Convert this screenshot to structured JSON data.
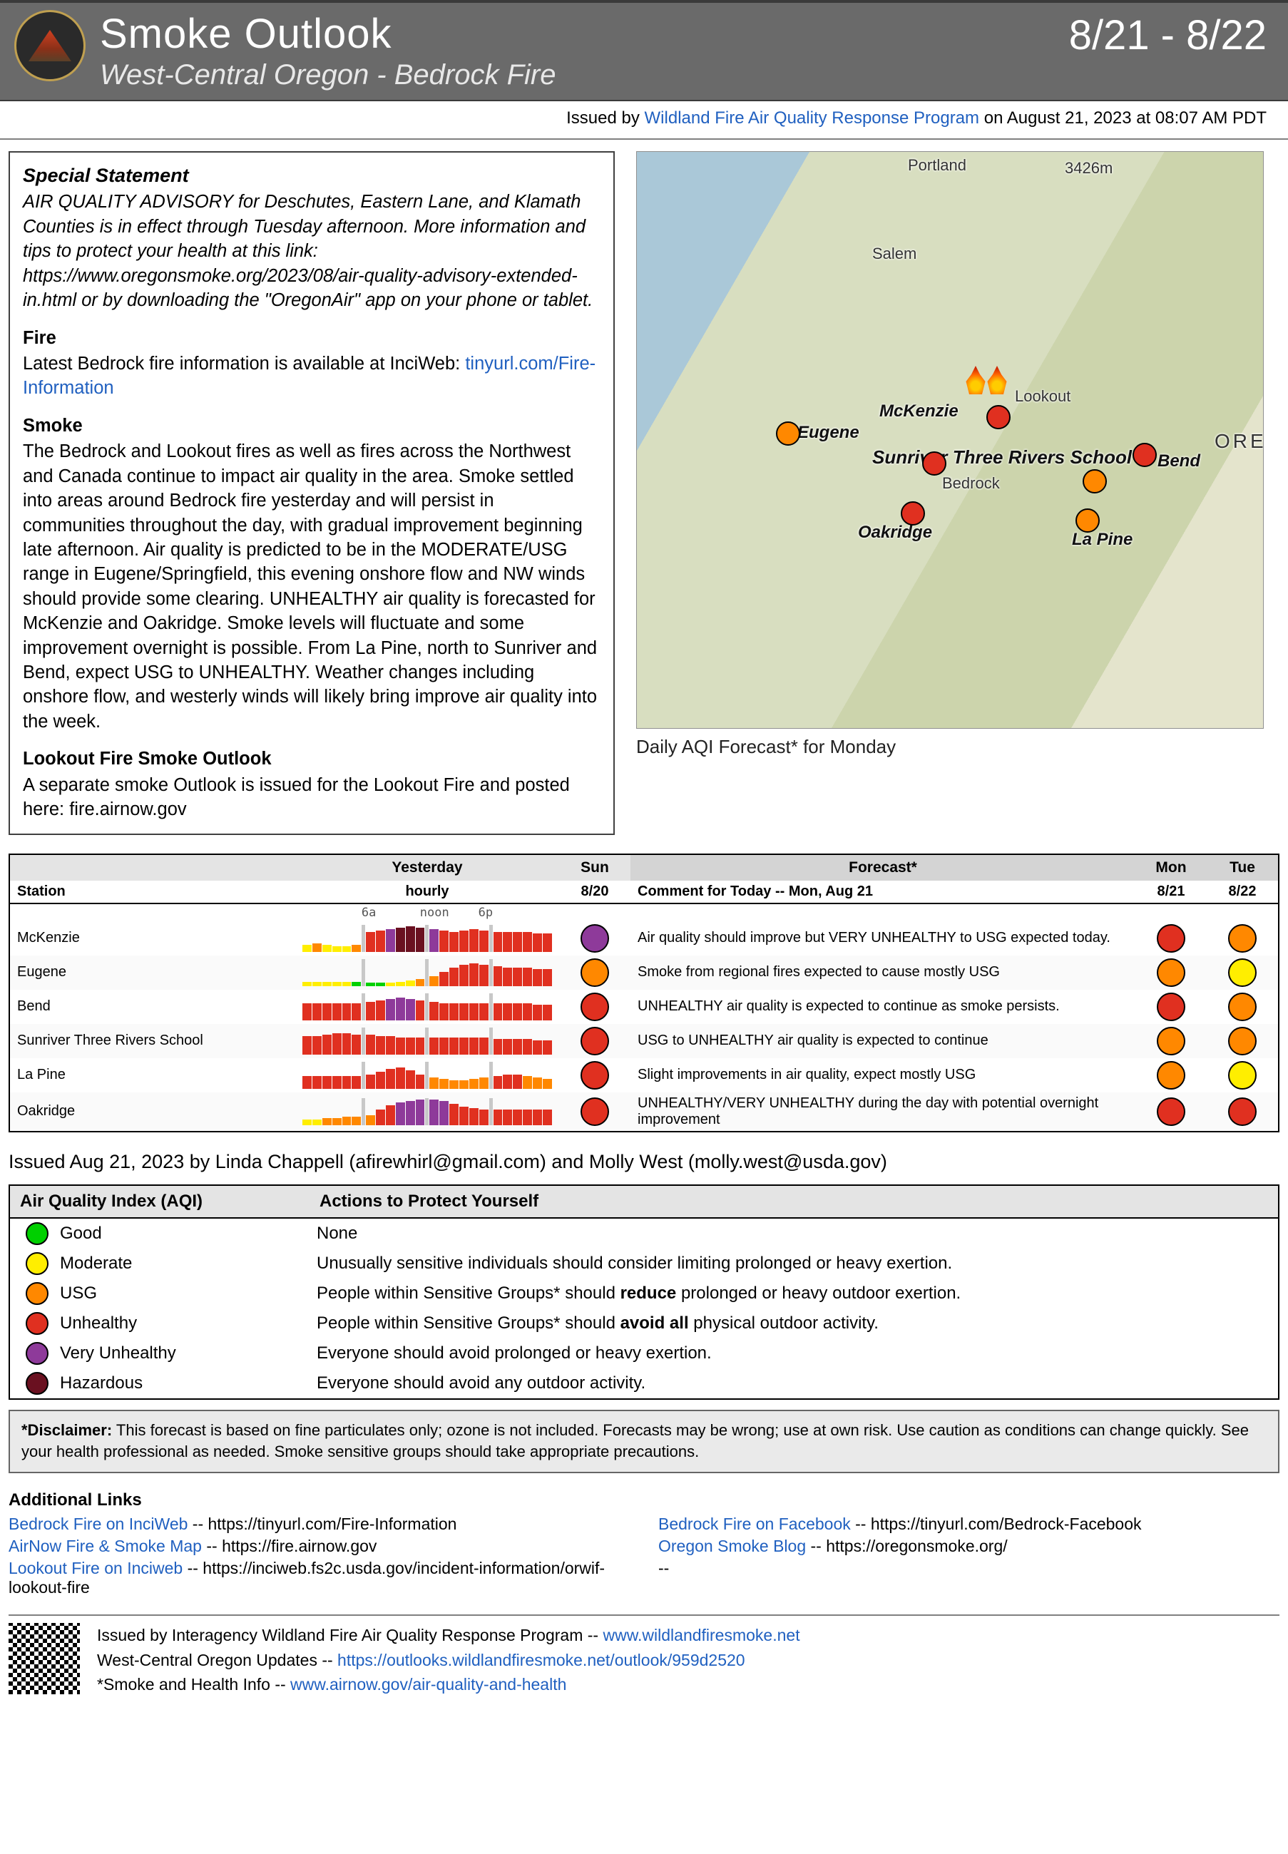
{
  "header": {
    "title": "Smoke Outlook",
    "subtitle": "West-Central Oregon  - Bedrock Fire",
    "date_range": "8/21 - 8/22"
  },
  "issued_line": {
    "prefix": "Issued by ",
    "program": "Wildland Fire Air Quality Response Program",
    "suffix": " on August 21, 2023 at 08:07 AM PDT"
  },
  "special": {
    "heading": "Special Statement",
    "body": "AIR QUALITY ADVISORY for Deschutes, Eastern Lane, and Klamath Counties is in effect through Tuesday afternoon. More information and tips to protect your health at this link: https://www.oregonsmoke.org/2023/08/air-quality-advisory-extended-in.html or by downloading the \"OregonAir\" app on your phone or tablet."
  },
  "fire": {
    "heading": "Fire",
    "body": "Latest Bedrock fire information is available at InciWeb: ",
    "link": "tinyurl.com/Fire-Information"
  },
  "smoke": {
    "heading": "Smoke",
    "body": "The Bedrock and Lookout fires as well as fires across the Northwest and Canada continue to impact air quality in the area. Smoke settled into areas around Bedrock fire yesterday and will persist in communities throughout the day, with gradual improvement beginning late afternoon. Air quality is predicted to be in the MODERATE/USG range in Eugene/Springfield, this evening onshore flow and NW winds should provide some clearing. UNHEALTHY air quality is forecasted for McKenzie and Oakridge. Smoke levels will fluctuate and some improvement overnight is possible. From La Pine, north to Sunriver and Bend, expect USG to UNHEALTHY. Weather changes including onshore flow, and westerly winds will likely bring improve air quality into the week."
  },
  "lookout": {
    "heading": "Lookout Fire Smoke Outlook",
    "body": "A separate smoke Outlook is issued for the Lookout Fire and posted here: fire.airnow.gov"
  },
  "map": {
    "caption": "Daily AQI Forecast* for Monday",
    "labels": {
      "portland": "Portland",
      "salem": "Salem",
      "eugene": "Eugene",
      "mckenzie": "McKenzie",
      "lookout": "Lookout",
      "bedrock": "Bedrock",
      "sunriver": "Sunriver Three Rivers School",
      "bend": "Bend",
      "oakridge": "Oakridge",
      "lapine": "La Pine",
      "oregon": "OREGON",
      "elev": "3426m"
    },
    "dots": {
      "eugene_color": "#ff8800",
      "mckenzie_color": "#e03020",
      "bedrock_color": "#e03020",
      "bend_color": "#e03020",
      "sunriver_color": "#ff8800",
      "oakridge_color": "#e03020",
      "lapine_color": "#ff8800"
    }
  },
  "table": {
    "head": {
      "station": "Station",
      "yesterday": "Yesterday",
      "sun": "Sun",
      "forecast": "Forecast*",
      "mon": "Mon",
      "tue": "Tue",
      "hourly": "hourly",
      "d820": "8/20",
      "comment": "Comment for Today -- Mon, Aug 21",
      "d821": "8/21",
      "d822": "8/22",
      "axis": "6a      noon    6p"
    },
    "rows": [
      {
        "station": "McKenzie",
        "bars": [
          {
            "h": 10,
            "c": "#ffee00"
          },
          {
            "h": 12,
            "c": "#ff8800"
          },
          {
            "h": 10,
            "c": "#ffee00"
          },
          {
            "h": 8,
            "c": "#ffee00"
          },
          {
            "h": 8,
            "c": "#ffee00"
          },
          {
            "h": 10,
            "c": "#ff8800"
          },
          {
            "h": 28,
            "c": "#e03020"
          },
          {
            "h": 30,
            "c": "#e03020"
          },
          {
            "h": 32,
            "c": "#8e3a9a"
          },
          {
            "h": 34,
            "c": "#6a1020"
          },
          {
            "h": 36,
            "c": "#6a1020"
          },
          {
            "h": 34,
            "c": "#6a1020"
          },
          {
            "h": 32,
            "c": "#8e3a9a"
          },
          {
            "h": 30,
            "c": "#e03020"
          },
          {
            "h": 28,
            "c": "#e03020"
          },
          {
            "h": 30,
            "c": "#e03020"
          },
          {
            "h": 32,
            "c": "#e03020"
          },
          {
            "h": 30,
            "c": "#e03020"
          },
          {
            "h": 28,
            "c": "#e03020"
          },
          {
            "h": 28,
            "c": "#e03020"
          },
          {
            "h": 28,
            "c": "#e03020"
          },
          {
            "h": 28,
            "c": "#e03020"
          },
          {
            "h": 26,
            "c": "#e03020"
          },
          {
            "h": 26,
            "c": "#e03020"
          }
        ],
        "sun": "purple",
        "comment": "Air quality should improve but VERY UNHEALTHY to USG expected today.",
        "mon": "red",
        "tue": "orange"
      },
      {
        "station": "Eugene",
        "bars": [
          {
            "h": 6,
            "c": "#ffee00"
          },
          {
            "h": 6,
            "c": "#ffee00"
          },
          {
            "h": 6,
            "c": "#ffee00"
          },
          {
            "h": 6,
            "c": "#ffee00"
          },
          {
            "h": 6,
            "c": "#ffee00"
          },
          {
            "h": 6,
            "c": "#00d000"
          },
          {
            "h": 5,
            "c": "#00d000"
          },
          {
            "h": 5,
            "c": "#00d000"
          },
          {
            "h": 5,
            "c": "#ffee00"
          },
          {
            "h": 6,
            "c": "#ffee00"
          },
          {
            "h": 8,
            "c": "#ffee00"
          },
          {
            "h": 10,
            "c": "#ff8800"
          },
          {
            "h": 14,
            "c": "#ff8800"
          },
          {
            "h": 20,
            "c": "#e03020"
          },
          {
            "h": 26,
            "c": "#e03020"
          },
          {
            "h": 30,
            "c": "#e03020"
          },
          {
            "h": 32,
            "c": "#e03020"
          },
          {
            "h": 30,
            "c": "#e03020"
          },
          {
            "h": 28,
            "c": "#e03020"
          },
          {
            "h": 26,
            "c": "#e03020"
          },
          {
            "h": 26,
            "c": "#e03020"
          },
          {
            "h": 26,
            "c": "#e03020"
          },
          {
            "h": 24,
            "c": "#e03020"
          },
          {
            "h": 24,
            "c": "#e03020"
          }
        ],
        "sun": "orange",
        "comment": "Smoke from regional fires expected to cause mostly USG",
        "mon": "orange",
        "tue": "yellow"
      },
      {
        "station": "Bend",
        "bars": [
          {
            "h": 24,
            "c": "#e03020"
          },
          {
            "h": 24,
            "c": "#e03020"
          },
          {
            "h": 24,
            "c": "#e03020"
          },
          {
            "h": 24,
            "c": "#e03020"
          },
          {
            "h": 24,
            "c": "#e03020"
          },
          {
            "h": 24,
            "c": "#e03020"
          },
          {
            "h": 26,
            "c": "#e03020"
          },
          {
            "h": 28,
            "c": "#e03020"
          },
          {
            "h": 30,
            "c": "#8e3a9a"
          },
          {
            "h": 32,
            "c": "#8e3a9a"
          },
          {
            "h": 30,
            "c": "#8e3a9a"
          },
          {
            "h": 28,
            "c": "#e03020"
          },
          {
            "h": 26,
            "c": "#e03020"
          },
          {
            "h": 24,
            "c": "#e03020"
          },
          {
            "h": 24,
            "c": "#e03020"
          },
          {
            "h": 24,
            "c": "#e03020"
          },
          {
            "h": 24,
            "c": "#e03020"
          },
          {
            "h": 24,
            "c": "#e03020"
          },
          {
            "h": 24,
            "c": "#e03020"
          },
          {
            "h": 24,
            "c": "#e03020"
          },
          {
            "h": 24,
            "c": "#e03020"
          },
          {
            "h": 24,
            "c": "#e03020"
          },
          {
            "h": 22,
            "c": "#e03020"
          },
          {
            "h": 22,
            "c": "#e03020"
          }
        ],
        "sun": "red",
        "comment": "UNHEALTHY air quality is expected to continue as smoke persists.",
        "mon": "red",
        "tue": "orange"
      },
      {
        "station": "Sunriver Three Rivers School",
        "bars": [
          {
            "h": 26,
            "c": "#e03020"
          },
          {
            "h": 26,
            "c": "#e03020"
          },
          {
            "h": 28,
            "c": "#e03020"
          },
          {
            "h": 30,
            "c": "#e03020"
          },
          {
            "h": 30,
            "c": "#e03020"
          },
          {
            "h": 28,
            "c": "#e03020"
          },
          {
            "h": 28,
            "c": "#e03020"
          },
          {
            "h": 26,
            "c": "#e03020"
          },
          {
            "h": 26,
            "c": "#e03020"
          },
          {
            "h": 24,
            "c": "#e03020"
          },
          {
            "h": 24,
            "c": "#e03020"
          },
          {
            "h": 24,
            "c": "#e03020"
          },
          {
            "h": 24,
            "c": "#e03020"
          },
          {
            "h": 24,
            "c": "#e03020"
          },
          {
            "h": 24,
            "c": "#e03020"
          },
          {
            "h": 24,
            "c": "#e03020"
          },
          {
            "h": 24,
            "c": "#e03020"
          },
          {
            "h": 24,
            "c": "#e03020"
          },
          {
            "h": 22,
            "c": "#e03020"
          },
          {
            "h": 22,
            "c": "#e03020"
          },
          {
            "h": 22,
            "c": "#e03020"
          },
          {
            "h": 22,
            "c": "#e03020"
          },
          {
            "h": 20,
            "c": "#e03020"
          },
          {
            "h": 20,
            "c": "#e03020"
          }
        ],
        "sun": "red",
        "comment": "USG to UNHEALTHY air quality is expected to continue",
        "mon": "orange",
        "tue": "orange"
      },
      {
        "station": "La Pine",
        "bars": [
          {
            "h": 18,
            "c": "#e03020"
          },
          {
            "h": 18,
            "c": "#e03020"
          },
          {
            "h": 18,
            "c": "#e03020"
          },
          {
            "h": 18,
            "c": "#e03020"
          },
          {
            "h": 18,
            "c": "#e03020"
          },
          {
            "h": 18,
            "c": "#e03020"
          },
          {
            "h": 20,
            "c": "#e03020"
          },
          {
            "h": 24,
            "c": "#e03020"
          },
          {
            "h": 28,
            "c": "#e03020"
          },
          {
            "h": 30,
            "c": "#e03020"
          },
          {
            "h": 26,
            "c": "#e03020"
          },
          {
            "h": 20,
            "c": "#e03020"
          },
          {
            "h": 16,
            "c": "#ff8800"
          },
          {
            "h": 14,
            "c": "#ff8800"
          },
          {
            "h": 12,
            "c": "#ff8800"
          },
          {
            "h": 12,
            "c": "#ff8800"
          },
          {
            "h": 14,
            "c": "#ff8800"
          },
          {
            "h": 16,
            "c": "#ff8800"
          },
          {
            "h": 18,
            "c": "#e03020"
          },
          {
            "h": 20,
            "c": "#e03020"
          },
          {
            "h": 20,
            "c": "#e03020"
          },
          {
            "h": 18,
            "c": "#ff8800"
          },
          {
            "h": 16,
            "c": "#ff8800"
          },
          {
            "h": 14,
            "c": "#ff8800"
          }
        ],
        "sun": "red",
        "comment": "Slight improvements in air quality, expect mostly USG",
        "mon": "orange",
        "tue": "yellow"
      },
      {
        "station": "Oakridge",
        "bars": [
          {
            "h": 8,
            "c": "#ffee00"
          },
          {
            "h": 8,
            "c": "#ffee00"
          },
          {
            "h": 10,
            "c": "#ff8800"
          },
          {
            "h": 10,
            "c": "#ff8800"
          },
          {
            "h": 12,
            "c": "#ff8800"
          },
          {
            "h": 12,
            "c": "#ff8800"
          },
          {
            "h": 14,
            "c": "#ff8800"
          },
          {
            "h": 22,
            "c": "#e03020"
          },
          {
            "h": 28,
            "c": "#e03020"
          },
          {
            "h": 32,
            "c": "#8e3a9a"
          },
          {
            "h": 34,
            "c": "#8e3a9a"
          },
          {
            "h": 36,
            "c": "#8e3a9a"
          },
          {
            "h": 36,
            "c": "#8e3a9a"
          },
          {
            "h": 34,
            "c": "#8e3a9a"
          },
          {
            "h": 30,
            "c": "#e03020"
          },
          {
            "h": 26,
            "c": "#e03020"
          },
          {
            "h": 24,
            "c": "#e03020"
          },
          {
            "h": 22,
            "c": "#e03020"
          },
          {
            "h": 22,
            "c": "#e03020"
          },
          {
            "h": 22,
            "c": "#e03020"
          },
          {
            "h": 22,
            "c": "#e03020"
          },
          {
            "h": 22,
            "c": "#e03020"
          },
          {
            "h": 22,
            "c": "#e03020"
          },
          {
            "h": 22,
            "c": "#e03020"
          }
        ],
        "sun": "red",
        "comment": "UNHEALTHY/VERY UNHEALTHY during the day with potential overnight improvement",
        "mon": "red",
        "tue": "red"
      }
    ]
  },
  "issued_by": "Issued Aug 21, 2023 by Linda Chappell (afirewhirl@gmail.com) and Molly West (molly.west@usda.gov)",
  "legend": {
    "col1": "Air Quality Index (AQI)",
    "col2": "Actions to Protect Yourself",
    "rows": [
      {
        "color": "green",
        "label": "Good",
        "action": "None"
      },
      {
        "color": "yellow",
        "label": "Moderate",
        "action": "Unusually sensitive individuals should consider limiting prolonged or heavy exertion."
      },
      {
        "color": "orange",
        "label": "USG",
        "action": "People within Sensitive Groups* should reduce prolonged or heavy outdoor exertion.",
        "bold": "reduce"
      },
      {
        "color": "red",
        "label": "Unhealthy",
        "action": "People within Sensitive Groups* should avoid all physical outdoor activity.",
        "bold": "avoid all"
      },
      {
        "color": "purple",
        "label": "Very Unhealthy",
        "action": "Everyone should avoid prolonged or heavy exertion."
      },
      {
        "color": "maroon",
        "label": "Hazardous",
        "action": "Everyone should avoid any outdoor activity."
      }
    ]
  },
  "disclaimer": {
    "label": "*Disclaimer:",
    "body": " This forecast is based on fine particulates only; ozone is not included. Forecasts may be wrong; use at own risk. Use caution as conditions can change quickly. See your health professional as needed. Smoke sensitive groups should take appropriate precautions."
  },
  "links": {
    "heading": "Additional Links",
    "items": [
      {
        "label": "Bedrock Fire on InciWeb",
        "url": "https://tinyurl.com/Fire-Information"
      },
      {
        "label": "Bedrock Fire on Facebook",
        "url": "https://tinyurl.com/Bedrock-Facebook"
      },
      {
        "label": "AirNow Fire & Smoke Map",
        "url": "https://fire.airnow.gov"
      },
      {
        "label": "Oregon Smoke Blog",
        "url": "https://oregonsmoke.org/"
      },
      {
        "label": "Lookout Fire on Inciweb",
        "url": "https://inciweb.fs2c.usda.gov/incident-information/orwif-lookout-fire"
      },
      {
        "label": "",
        "url": "--"
      }
    ]
  },
  "footer": {
    "l1a": "Issued by Interagency Wildland Fire Air Quality Response Program -- ",
    "l1b": "www.wildlandfiresmoke.net",
    "l2a": "West-Central Oregon Updates -- ",
    "l2b": "https://outlooks.wildlandfiresmoke.net/outlook/959d2520",
    "l3a": "*Smoke and Health Info -- ",
    "l3b": "www.airnow.gov/air-quality-and-health"
  }
}
